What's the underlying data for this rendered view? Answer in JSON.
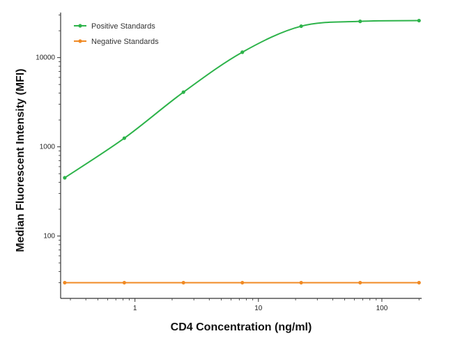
{
  "chart_data": {
    "type": "line",
    "xlabel": "CD4 Concentration (ng/ml)",
    "ylabel": "Median  Fluorescent Intensity  (MFI)",
    "x_scale": "log",
    "y_scale": "log",
    "xlim": [
      0.25,
      210
    ],
    "ylim": [
      20,
      32000
    ],
    "x_ticks": [
      1,
      10,
      100
    ],
    "x_tick_labels": [
      "1",
      "10",
      "100"
    ],
    "y_ticks": [
      100,
      1000,
      10000
    ],
    "y_tick_labels": [
      "100",
      "1000",
      "10000"
    ],
    "legend_position": "top-left",
    "grid": false,
    "series": [
      {
        "name": "Positive Standards",
        "color": "#2db34a",
        "x": [
          0.27,
          0.82,
          2.47,
          7.41,
          22.2,
          66.7,
          200
        ],
        "y": [
          450,
          1250,
          4100,
          11500,
          22500,
          25500,
          26000
        ]
      },
      {
        "name": "Negative Standards",
        "color": "#f08a24",
        "x": [
          0.27,
          0.82,
          2.47,
          7.41,
          22.2,
          66.7,
          200
        ],
        "y": [
          30,
          30,
          30,
          30,
          30,
          30,
          30
        ]
      }
    ]
  }
}
